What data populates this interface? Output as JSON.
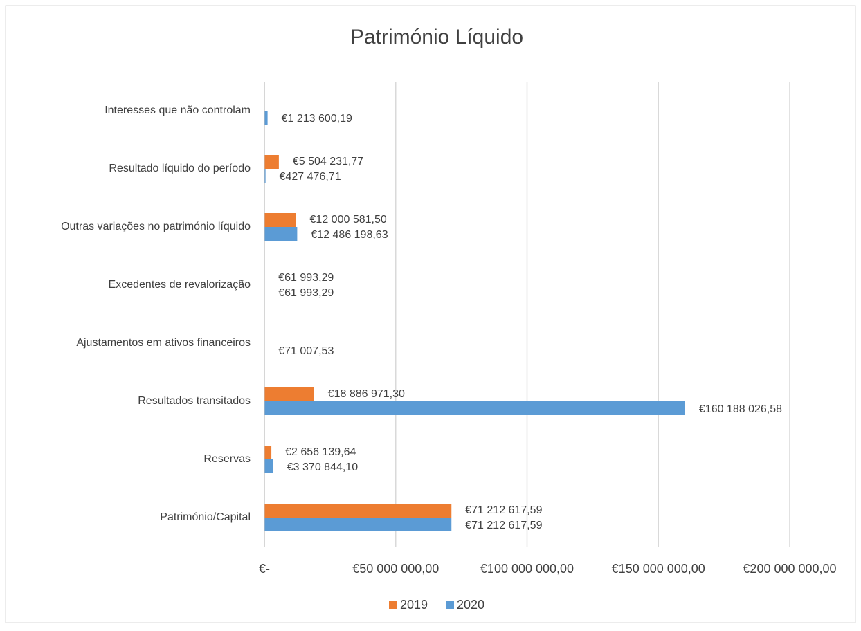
{
  "chart_data": {
    "type": "bar",
    "orientation": "horizontal",
    "title": "Património Líquido",
    "categories": [
      "Interesses que não controlam",
      "Resultado líquido do período",
      "Outras variações no património líquido",
      "Excedentes de revalorização",
      "Ajustamentos em ativos financeiros",
      "Resultados transitados",
      "Reservas",
      "Património/Capital"
    ],
    "series": [
      {
        "name": "2019",
        "color": "#ed7d31",
        "values": [
          null,
          5504231.77,
          12000581.5,
          61993.29,
          null,
          18886971.3,
          2656139.64,
          71212617.59
        ],
        "value_labels": [
          null,
          "€5 504 231,77",
          "€12 000 581,50",
          "€61 993,29",
          null,
          "€18 886 971,30",
          "€2 656 139,64",
          "€71 212 617,59"
        ]
      },
      {
        "name": "2020",
        "color": "#5b9bd5",
        "values": [
          1213600.19,
          427476.71,
          12486198.63,
          61993.29,
          71007.53,
          160188026.58,
          3370844.1,
          71212617.59
        ],
        "value_labels": [
          "€1 213 600,19",
          "€427 476,71",
          "€12 486 198,63",
          "€61 993,29",
          "€71 007,53",
          "€160 188 026,58",
          "€3 370 844,10",
          "€71 212 617,59"
        ]
      }
    ],
    "xlim": [
      0,
      200000000
    ],
    "xticks": [
      {
        "value": 0,
        "label": "€-"
      },
      {
        "value": 50000000,
        "label": "€50 000 000,00"
      },
      {
        "value": 100000000,
        "label": "€100 000 000,00"
      },
      {
        "value": 150000000,
        "label": "€150 000 000,00"
      },
      {
        "value": 200000000,
        "label": "€200 000 000,00"
      }
    ],
    "grid": true,
    "legend": "bottom"
  }
}
